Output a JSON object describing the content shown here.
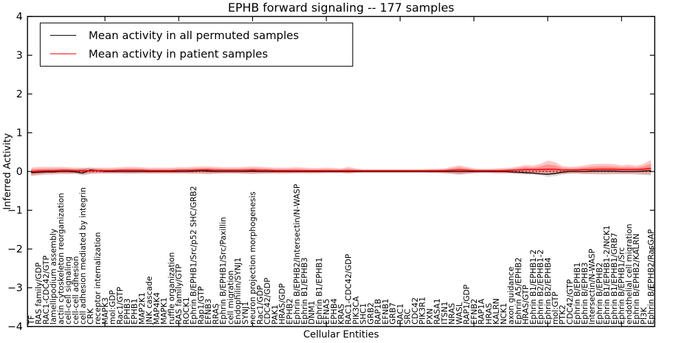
{
  "figure": {
    "title": "EPHB forward signaling -- 177 samples",
    "xlabel": "Cellular Entities",
    "ylabel": "Inferred Activity"
  },
  "legend": {
    "position": "upper left",
    "entries": [
      {
        "label": "Mean activity in all permuted samples",
        "color": "#000000"
      },
      {
        "label": "Mean activity in patient samples",
        "color": "#ff0000"
      }
    ]
  },
  "colors": {
    "permuted_line": "#000000",
    "patient_line": "#ff0000",
    "patient_band": "#ff0000",
    "permuted_band": "#888888",
    "zero_line": "#000000",
    "frame": "#000000"
  },
  "chart_data": {
    "type": "line",
    "title": "EPHB forward signaling -- 177 samples",
    "xlabel": "Cellular Entities",
    "ylabel": "Inferred Activity",
    "ylim": [
      -4,
      4
    ],
    "yticks": [
      -4,
      -3,
      -2,
      -1,
      0,
      1,
      2,
      3,
      4
    ],
    "grid": false,
    "legend_position": "upper left",
    "zero_reference_line": 0,
    "categories": [
      "TF",
      "RAS family/GDP",
      "RAC1-CDC42/GTP",
      "lamellipodium assembly",
      "actin cytoskeleton reorganization",
      "cell-cell signaling",
      "cell-cell adhesion",
      "cell adhesion mediated by integrin",
      "CRK",
      "receptor internalization",
      "MAPK3",
      "mol:GDP",
      "Rac1/GTP",
      "EPHB3",
      "EPHB1",
      "MAP2K1",
      "JNK cascade",
      "MAP4K4",
      "MAPK1",
      "ruffle organization",
      "RAS family/GTP",
      "ROCK1",
      "Ephrin B/EPHB1/Src/p52 SHC/GRB2",
      "Rap1/GTP",
      "EFNB3",
      "RRAS",
      "Ephrin B/EPHB1/Src/Paxillin",
      "cell migration",
      "Endophilin/SYNJ1",
      "SYNJ1",
      "neuron projection morphogenesis",
      "Rac1/GDP",
      "CDC42/GDP",
      "PAK1",
      "HRAS/GDP",
      "EPHB2",
      "Ephrin B/EPHB2/Intersectin/N-WASP",
      "Ephrin B1/EPHB3",
      "DNM1",
      "Ephrin B1/EPHB1",
      "EFNA5",
      "EPHB4",
      "KRAS",
      "RAC1-CDC42/GDP",
      "PIK3CA",
      "SHC1",
      "GRB2",
      "RAP1B",
      "EFNB1",
      "GRB7",
      "RAC1",
      "SRC",
      "CDC42",
      "PIK3R1",
      "PXN",
      "RASA1",
      "ITSN1",
      "NRAS",
      "WASL",
      "RAP1/GDP",
      "EFNB2",
      "RAP1A",
      "HRAS",
      "KALRN",
      "NCK1",
      "axon guidance",
      "Ephrin A5/EPHB2",
      "HRAS/GTP",
      "Ephrin B1/EPHB1-2",
      "Ephrin B2/EPHB1-2",
      "Ephrin B2/EPHB4",
      "mol:GTP",
      "PTK2",
      "CDC42/GTP",
      "Ephrin B/EPHB1",
      "Ephrin B/EPHB3",
      "Intersectin/N-WASP",
      "Ephrin B/EPHB2",
      "Ephrin B1/EPHB1-2/NCK1",
      "Ephrin B1/EPHB1/GRB7",
      "Ephrin B/EPHB1/Src",
      "endothelial cell migration",
      "Ephrin B/EPHB2/KALRN",
      "PI3K",
      "Ephrin B/EPHB2/RasGAP"
    ],
    "series": [
      {
        "name": "Mean activity in all permuted samples",
        "color": "#000000",
        "values": [
          -0.03,
          -0.02,
          -0.01,
          -0.01,
          0,
          0,
          -0.01,
          -0.04,
          0.04,
          0.02,
          0,
          0,
          0,
          0,
          0,
          0,
          0,
          0,
          0,
          0,
          0,
          0,
          0.01,
          0.02,
          0.01,
          0,
          0,
          0,
          0,
          0,
          0.01,
          0,
          0,
          0,
          0,
          0,
          0,
          0,
          0,
          0,
          0,
          0,
          0,
          0,
          0,
          0,
          0,
          0,
          0,
          0,
          0,
          0,
          0,
          0,
          0,
          0,
          0,
          0,
          0,
          0,
          0,
          0,
          0,
          0,
          0,
          -0.01,
          -0.02,
          -0.03,
          -0.04,
          -0.06,
          -0.07,
          -0.05,
          -0.02,
          0,
          0,
          0,
          0.01,
          0.01,
          0.01,
          0.01,
          0,
          0,
          0,
          0.01,
          0.02
        ]
      },
      {
        "name": "Mean activity in patient samples",
        "color": "#ff0000",
        "values": [
          0,
          0.01,
          0.02,
          0.02,
          0.03,
          0.03,
          0.02,
          0.02,
          0.02,
          0.02,
          0.02,
          0.02,
          0.03,
          0.03,
          0.03,
          0.03,
          0.02,
          0.02,
          0.02,
          0.02,
          0.03,
          0.03,
          0.03,
          0.04,
          0.04,
          0.03,
          0.03,
          0.03,
          0.03,
          0.03,
          0.04,
          0.03,
          0.03,
          0.02,
          0.02,
          0.02,
          0.02,
          0.02,
          0.02,
          0.02,
          0.02,
          0.02,
          0.02,
          0.02,
          0.02,
          0.02,
          0.02,
          0.02,
          0.02,
          0.02,
          0.02,
          0.02,
          0.02,
          0.02,
          0.02,
          0.02,
          0.02,
          0.03,
          0.04,
          0.03,
          0.02,
          0.02,
          0.02,
          0.02,
          0.02,
          0.03,
          0.04,
          0.05,
          0.05,
          0.05,
          0.06,
          0.06,
          0.04,
          0.04,
          0.04,
          0.05,
          0.05,
          0.06,
          0.06,
          0.06,
          0.05,
          0.05,
          0.05,
          0.06,
          0.08
        ]
      }
    ],
    "bands": [
      {
        "name": "permuted-sample-range",
        "color": "#888888",
        "hi": [
          0.05,
          0.05,
          0.05,
          0.05,
          0.05,
          0.05,
          0.06,
          0.08,
          0.1,
          0.07,
          0.05,
          0.05,
          0.05,
          0.05,
          0.05,
          0.05,
          0.05,
          0.05,
          0.05,
          0.05,
          0.05,
          0.05,
          0.06,
          0.07,
          0.08,
          0.06,
          0.05,
          0.05,
          0.05,
          0.05,
          0.06,
          0.05,
          0.05,
          0.05,
          0.05,
          0.05,
          0.05,
          0.04,
          0.04,
          0.04,
          0.04,
          0.04,
          0.04,
          0.05,
          0.04,
          0.03,
          0.03,
          0.03,
          0.03,
          0.03,
          0.03,
          0.03,
          0.03,
          0.03,
          0.04,
          0.04,
          0.05,
          0.06,
          0.08,
          0.06,
          0.05,
          0.04,
          0.04,
          0.04,
          0.05,
          0.05,
          0.06,
          0.07,
          0.07,
          0.08,
          0.08,
          0.07,
          0.06,
          0.06,
          0.06,
          0.07,
          0.07,
          0.08,
          0.08,
          0.08,
          0.07,
          0.07,
          0.08,
          0.09,
          0.12
        ],
        "lo": [
          -0.11,
          -0.08,
          -0.06,
          -0.05,
          -0.05,
          -0.05,
          -0.06,
          -0.1,
          -0.06,
          -0.05,
          -0.05,
          -0.05,
          -0.05,
          -0.05,
          -0.05,
          -0.05,
          -0.05,
          -0.05,
          -0.05,
          -0.05,
          -0.05,
          -0.05,
          -0.05,
          -0.05,
          -0.06,
          -0.05,
          -0.05,
          -0.05,
          -0.05,
          -0.05,
          -0.05,
          -0.05,
          -0.05,
          -0.05,
          -0.05,
          -0.05,
          -0.04,
          -0.04,
          -0.04,
          -0.04,
          -0.04,
          -0.04,
          -0.04,
          -0.04,
          -0.03,
          -0.03,
          -0.03,
          -0.03,
          -0.03,
          -0.03,
          -0.03,
          -0.03,
          -0.03,
          -0.03,
          -0.03,
          -0.03,
          -0.04,
          -0.06,
          -0.08,
          -0.06,
          -0.04,
          -0.03,
          -0.03,
          -0.04,
          -0.04,
          -0.05,
          -0.06,
          -0.07,
          -0.08,
          -0.1,
          -0.14,
          -0.12,
          -0.08,
          -0.06,
          -0.06,
          -0.07,
          -0.07,
          -0.08,
          -0.08,
          -0.07,
          -0.07,
          -0.07,
          -0.08,
          -0.09,
          -0.1
        ]
      },
      {
        "name": "patient-sample-range",
        "color": "#ff0000",
        "hi": [
          0.1,
          0.12,
          0.12,
          0.12,
          0.12,
          0.11,
          0.1,
          0.1,
          0.1,
          0.1,
          0.1,
          0.1,
          0.11,
          0.12,
          0.12,
          0.11,
          0.1,
          0.1,
          0.1,
          0.1,
          0.11,
          0.11,
          0.12,
          0.13,
          0.13,
          0.12,
          0.11,
          0.11,
          0.11,
          0.12,
          0.13,
          0.12,
          0.11,
          0.1,
          0.1,
          0.1,
          0.11,
          0.1,
          0.09,
          0.09,
          0.1,
          0.09,
          0.08,
          0.12,
          0.08,
          0.06,
          0.06,
          0.06,
          0.06,
          0.06,
          0.06,
          0.06,
          0.06,
          0.06,
          0.07,
          0.07,
          0.08,
          0.12,
          0.16,
          0.12,
          0.08,
          0.07,
          0.07,
          0.08,
          0.09,
          0.1,
          0.13,
          0.17,
          0.15,
          0.2,
          0.28,
          0.24,
          0.14,
          0.12,
          0.13,
          0.16,
          0.19,
          0.2,
          0.2,
          0.19,
          0.16,
          0.18,
          0.15,
          0.2,
          0.3
        ],
        "lo": [
          -0.11,
          -0.1,
          -0.08,
          -0.08,
          -0.07,
          -0.07,
          -0.06,
          -0.08,
          -0.06,
          -0.05,
          -0.05,
          -0.05,
          -0.05,
          -0.06,
          -0.06,
          -0.05,
          -0.05,
          -0.05,
          -0.05,
          -0.05,
          -0.05,
          -0.05,
          -0.06,
          -0.06,
          -0.07,
          -0.06,
          -0.05,
          -0.05,
          -0.05,
          -0.06,
          -0.07,
          -0.06,
          -0.05,
          -0.05,
          -0.05,
          -0.05,
          -0.05,
          -0.05,
          -0.05,
          -0.05,
          -0.04,
          -0.04,
          -0.04,
          -0.06,
          -0.04,
          -0.03,
          -0.03,
          -0.03,
          -0.03,
          -0.03,
          -0.03,
          -0.03,
          -0.03,
          -0.03,
          -0.04,
          -0.04,
          -0.05,
          -0.06,
          -0.08,
          -0.06,
          -0.05,
          -0.04,
          -0.04,
          -0.05,
          -0.05,
          -0.05,
          -0.06,
          -0.07,
          -0.07,
          -0.08,
          -0.09,
          -0.08,
          -0.06,
          -0.05,
          -0.05,
          -0.06,
          -0.06,
          -0.06,
          -0.06,
          -0.06,
          -0.06,
          -0.06,
          -0.06,
          -0.07,
          -0.08
        ]
      }
    ]
  }
}
